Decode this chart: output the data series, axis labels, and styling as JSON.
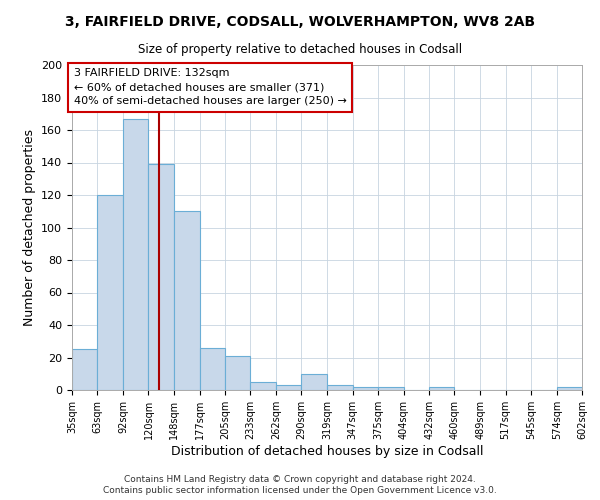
{
  "title": "3, FAIRFIELD DRIVE, CODSALL, WOLVERHAMPTON, WV8 2AB",
  "subtitle": "Size of property relative to detached houses in Codsall",
  "xlabel": "Distribution of detached houses by size in Codsall",
  "ylabel": "Number of detached properties",
  "bar_color": "#c8d8ea",
  "bar_edge_color": "#6baed6",
  "background_color": "#ffffff",
  "grid_color": "#c8d4e0",
  "bins": [
    35,
    63,
    92,
    120,
    148,
    177,
    205,
    233,
    262,
    290,
    319,
    347,
    375,
    404,
    432,
    460,
    489,
    517,
    545,
    574,
    602
  ],
  "counts": [
    25,
    120,
    167,
    139,
    110,
    26,
    21,
    5,
    3,
    10,
    3,
    2,
    2,
    0,
    2,
    0,
    0,
    0,
    0,
    2
  ],
  "property_value": 132,
  "vline_color": "#aa0000",
  "annotation_line1": "3 FAIRFIELD DRIVE: 132sqm",
  "annotation_line2": "← 60% of detached houses are smaller (371)",
  "annotation_line3": "40% of semi-detached houses are larger (250) →",
  "annotation_box_color": "#ffffff",
  "annotation_box_edge": "#cc0000",
  "ylim": [
    0,
    200
  ],
  "yticks": [
    0,
    20,
    40,
    60,
    80,
    100,
    120,
    140,
    160,
    180,
    200
  ],
  "footer1": "Contains HM Land Registry data © Crown copyright and database right 2024.",
  "footer2": "Contains public sector information licensed under the Open Government Licence v3.0."
}
